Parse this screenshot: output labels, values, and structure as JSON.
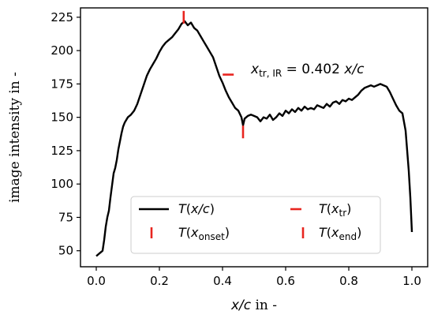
{
  "chart_data": {
    "type": "line",
    "xlim": [
      -0.05,
      1.05
    ],
    "ylim": [
      38,
      232
    ],
    "xticks": [
      0.0,
      0.2,
      0.4,
      0.6,
      0.8,
      1.0
    ],
    "xtick_labels": [
      "0.0",
      "0.2",
      "0.4",
      "0.6",
      "0.8",
      "1.0"
    ],
    "yticks": [
      50,
      75,
      100,
      125,
      150,
      175,
      200,
      225
    ],
    "ytick_labels": [
      "50",
      "75",
      "100",
      "125",
      "150",
      "175",
      "200",
      "225"
    ],
    "xlabel_italic": "x/c",
    "xlabel_rest": " in -",
    "ylabel": "image intensity in -",
    "grid": false,
    "legend_position": "lower-center",
    "annotation": {
      "sym": "x",
      "sub": "tr, IR",
      "eq": " = 0.402 ",
      "unit": "x/c",
      "anchor_x": 0.49,
      "anchor_y": 183
    },
    "series": [
      {
        "key": "T",
        "name": "T(x/c)",
        "kind": "line",
        "color": "#000000",
        "points": [
          [
            0.0,
            46
          ],
          [
            0.01,
            48
          ],
          [
            0.02,
            50
          ],
          [
            0.025,
            58
          ],
          [
            0.03,
            68
          ],
          [
            0.035,
            75
          ],
          [
            0.04,
            80
          ],
          [
            0.045,
            90
          ],
          [
            0.05,
            99
          ],
          [
            0.055,
            108
          ],
          [
            0.06,
            112
          ],
          [
            0.065,
            118
          ],
          [
            0.07,
            126
          ],
          [
            0.075,
            132
          ],
          [
            0.08,
            138
          ],
          [
            0.085,
            143
          ],
          [
            0.09,
            146
          ],
          [
            0.1,
            150
          ],
          [
            0.11,
            152
          ],
          [
            0.12,
            155
          ],
          [
            0.13,
            160
          ],
          [
            0.14,
            167
          ],
          [
            0.15,
            174
          ],
          [
            0.16,
            181
          ],
          [
            0.17,
            186
          ],
          [
            0.18,
            190
          ],
          [
            0.19,
            194
          ],
          [
            0.2,
            199
          ],
          [
            0.21,
            203
          ],
          [
            0.22,
            206
          ],
          [
            0.23,
            208
          ],
          [
            0.24,
            210
          ],
          [
            0.25,
            213
          ],
          [
            0.26,
            216
          ],
          [
            0.27,
            220
          ],
          [
            0.28,
            222
          ],
          [
            0.29,
            219
          ],
          [
            0.3,
            221
          ],
          [
            0.31,
            217
          ],
          [
            0.32,
            215
          ],
          [
            0.33,
            211
          ],
          [
            0.34,
            207
          ],
          [
            0.35,
            203
          ],
          [
            0.36,
            199
          ],
          [
            0.37,
            195
          ],
          [
            0.38,
            188
          ],
          [
            0.39,
            181
          ],
          [
            0.4,
            176
          ],
          [
            0.41,
            170
          ],
          [
            0.42,
            165
          ],
          [
            0.43,
            161
          ],
          [
            0.44,
            157
          ],
          [
            0.45,
            155
          ],
          [
            0.46,
            150
          ],
          [
            0.465,
            144
          ],
          [
            0.47,
            149
          ],
          [
            0.48,
            151
          ],
          [
            0.49,
            152
          ],
          [
            0.5,
            151
          ],
          [
            0.51,
            150
          ],
          [
            0.52,
            147
          ],
          [
            0.53,
            150
          ],
          [
            0.54,
            149
          ],
          [
            0.55,
            152
          ],
          [
            0.56,
            148
          ],
          [
            0.57,
            150
          ],
          [
            0.58,
            153
          ],
          [
            0.59,
            151
          ],
          [
            0.6,
            155
          ],
          [
            0.61,
            153
          ],
          [
            0.62,
            156
          ],
          [
            0.63,
            154
          ],
          [
            0.64,
            157
          ],
          [
            0.65,
            155
          ],
          [
            0.66,
            158
          ],
          [
            0.67,
            156
          ],
          [
            0.68,
            157
          ],
          [
            0.69,
            156
          ],
          [
            0.7,
            159
          ],
          [
            0.71,
            158
          ],
          [
            0.72,
            157
          ],
          [
            0.73,
            160
          ],
          [
            0.74,
            158
          ],
          [
            0.75,
            161
          ],
          [
            0.76,
            162
          ],
          [
            0.77,
            160
          ],
          [
            0.78,
            163
          ],
          [
            0.79,
            162
          ],
          [
            0.8,
            164
          ],
          [
            0.81,
            163
          ],
          [
            0.82,
            165
          ],
          [
            0.83,
            167
          ],
          [
            0.84,
            170
          ],
          [
            0.85,
            172
          ],
          [
            0.86,
            173
          ],
          [
            0.87,
            174
          ],
          [
            0.88,
            173
          ],
          [
            0.89,
            174
          ],
          [
            0.9,
            175
          ],
          [
            0.91,
            174
          ],
          [
            0.92,
            173
          ],
          [
            0.93,
            169
          ],
          [
            0.94,
            164
          ],
          [
            0.95,
            159
          ],
          [
            0.96,
            155
          ],
          [
            0.97,
            153
          ],
          [
            0.98,
            140
          ],
          [
            0.99,
            110
          ],
          [
            0.995,
            90
          ],
          [
            1.0,
            64
          ]
        ]
      },
      {
        "key": "Tonset",
        "name": "T(x_onset)",
        "kind": "vmarker",
        "color": "#e8251f",
        "points": [
          [
            0.277,
            225
          ]
        ]
      },
      {
        "key": "Ttr",
        "name": "T(x_tr)",
        "kind": "hmarker",
        "color": "#e8251f",
        "points": [
          [
            0.418,
            182
          ]
        ]
      },
      {
        "key": "Tend",
        "name": "T(x_end)",
        "kind": "vmarker",
        "color": "#e8251f",
        "points": [
          [
            0.465,
            139
          ]
        ]
      }
    ],
    "legend": [
      {
        "key": "T",
        "main": "T",
        "sub": "",
        "arg": "x/c"
      },
      {
        "key": "Ttr",
        "main": "T",
        "sub": "tr",
        "arg": "x"
      },
      {
        "key": "Tonset",
        "main": "T",
        "sub": "onset",
        "arg": "x"
      },
      {
        "key": "Tend",
        "main": "T",
        "sub": "end",
        "arg": "x"
      }
    ]
  }
}
